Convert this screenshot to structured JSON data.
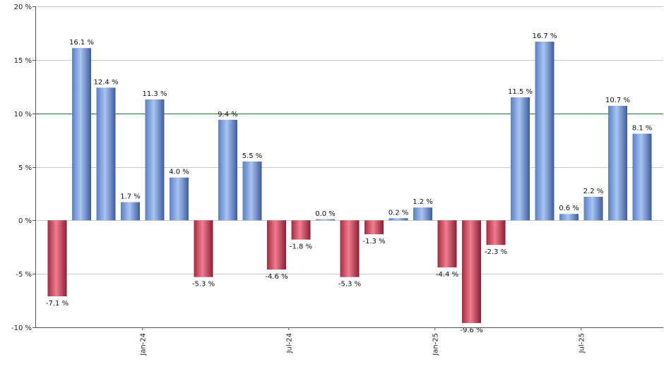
{
  "chart_data": {
    "type": "bar",
    "title": "",
    "xlabel": "",
    "ylabel": "",
    "ylim": [
      -10,
      20
    ],
    "y_ticks": [
      -10,
      -5,
      0,
      5,
      10,
      15,
      20
    ],
    "y_tick_labels": [
      "-10 %",
      "-5 %",
      "0 %",
      "5 %",
      "10 %",
      "15 %",
      "20 %"
    ],
    "x_tick_labels": [
      "Jan-24",
      "Jul-24",
      "Jan-25",
      "Jul-25"
    ],
    "x_tick_positions": [
      3.5,
      9.5,
      15.5,
      21.5
    ],
    "reference_line": 10,
    "reference_line_color": "#1f7a1f",
    "grid": true,
    "positive_color": "#6f95dc",
    "negative_color": "#c2384f",
    "values": [
      -7.1,
      16.1,
      12.4,
      1.7,
      11.3,
      4.0,
      -5.3,
      9.4,
      5.5,
      -4.6,
      -1.8,
      0.0,
      -5.3,
      -1.3,
      0.2,
      1.2,
      -4.4,
      -9.6,
      -2.3,
      11.5,
      16.7,
      0.6,
      2.2,
      10.7,
      8.1
    ],
    "value_labels": [
      "-7.1 %",
      "16.1 %",
      "12.4 %",
      "1.7 %",
      "11.3 %",
      "4.0 %",
      "-5.3 %",
      "9.4 %",
      "5.5 %",
      "-4.6 %",
      "-1.8 %",
      "0.0 %",
      "-5.3 %",
      "-1.3 %",
      "0.2 %",
      "1.2 %",
      "-4.4 %",
      "-9.6 %",
      "-2.3 %",
      "11.5 %",
      "16.7 %",
      "0.6 %",
      "2.2 %",
      "10.7 %",
      "8.1 %"
    ]
  }
}
